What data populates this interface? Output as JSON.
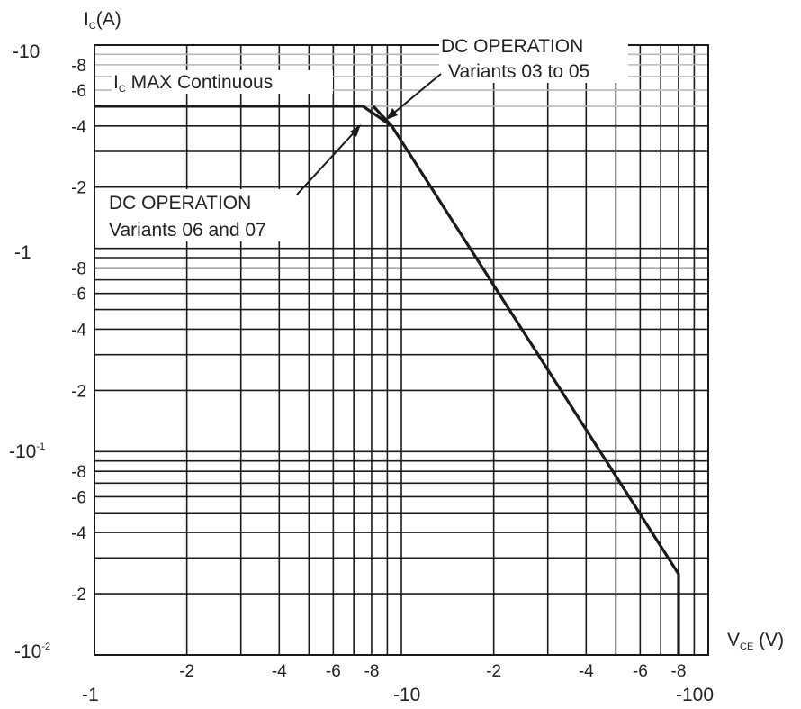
{
  "chart_data": {
    "type": "line",
    "title": "",
    "x_scale": "log",
    "y_scale": "log",
    "xlim": [
      -1,
      -100
    ],
    "ylim": [
      -0.01,
      -10
    ],
    "xlabel": {
      "main": "V",
      "sub": "CE",
      "unit": " (V)"
    },
    "ylabel": {
      "main": "I",
      "sub": "C",
      "unit": "(A)"
    },
    "x_major_ticks": [
      {
        "value": -1,
        "label": "-1"
      },
      {
        "value": -10,
        "label": "-10"
      },
      {
        "value": -100,
        "label": "-100"
      }
    ],
    "x_minor_ticks": [
      {
        "value": -2,
        "label": "-2"
      },
      {
        "value": -4,
        "label": "-4"
      },
      {
        "value": -6,
        "label": "-6"
      },
      {
        "value": -8,
        "label": "-8"
      },
      {
        "value": -20,
        "label": "-2"
      },
      {
        "value": -40,
        "label": "-4"
      },
      {
        "value": -60,
        "label": "-6"
      },
      {
        "value": -80,
        "label": "-8"
      }
    ],
    "y_major_ticks": [
      {
        "value": -10,
        "label": "-10",
        "exp": ""
      },
      {
        "value": -1,
        "label": "-1",
        "exp": ""
      },
      {
        "value": -0.1,
        "label": "-10",
        "exp": "-1"
      },
      {
        "value": -0.01,
        "label": "-10",
        "exp": "-2"
      }
    ],
    "y_minor_ticks": [
      {
        "value": -8,
        "label": "-8"
      },
      {
        "value": -6,
        "label": "-6"
      },
      {
        "value": -4,
        "label": "-4"
      },
      {
        "value": -2,
        "label": "-2"
      },
      {
        "value": -0.8,
        "label": "-8"
      },
      {
        "value": -0.6,
        "label": "-6"
      },
      {
        "value": -0.4,
        "label": "-4"
      },
      {
        "value": -0.2,
        "label": "-2"
      },
      {
        "value": -0.08,
        "label": "-8"
      },
      {
        "value": -0.06,
        "label": "-6"
      },
      {
        "value": -0.04,
        "label": "-4"
      },
      {
        "value": -0.02,
        "label": "-2"
      }
    ],
    "grid": true,
    "series": [
      {
        "points": [
          [
            -1,
            -5
          ],
          [
            -7.5,
            -5
          ],
          [
            -9.3,
            -4
          ],
          [
            -80,
            -0.025
          ],
          [
            -80,
            -0.01
          ]
        ]
      },
      {
        "points": [
          [
            -8.1,
            -5
          ],
          [
            -9.3,
            -4
          ]
        ]
      }
    ],
    "annotations": [
      {
        "text_main": "I",
        "text_sub": "C",
        "text_rest": " MAX Continuous"
      },
      {
        "lines": [
          "DC OPERATION",
          "Variants 03 to 05"
        ],
        "arrow_to": [
          -9,
          -4.2
        ]
      },
      {
        "lines": [
          "DC OPERATION",
          "Variants 06 and 07"
        ],
        "arrow_to": [
          -7.5,
          -4.1
        ]
      }
    ]
  }
}
